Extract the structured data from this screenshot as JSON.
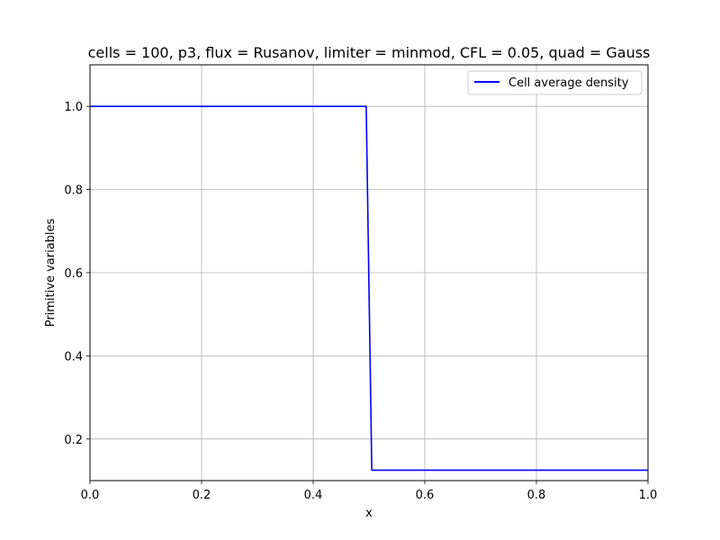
{
  "chart_data": {
    "type": "line",
    "title": "cells = 100, p3, flux = Rusanov, limiter = minmod, CFL = 0.05, quad = Gauss",
    "xlabel": "x",
    "ylabel": "Primitive variables",
    "xlim": [
      0.0,
      1.0
    ],
    "ylim": [
      0.1,
      1.1
    ],
    "xticks": [
      0.0,
      0.2,
      0.4,
      0.6,
      0.8,
      1.0
    ],
    "xtick_labels": [
      "0.0",
      "0.2",
      "0.4",
      "0.6",
      "0.8",
      "1.0"
    ],
    "yticks": [
      0.2,
      0.4,
      0.6,
      0.8,
      1.0
    ],
    "ytick_labels": [
      "0.2",
      "0.4",
      "0.6",
      "0.8",
      "1.0"
    ],
    "grid": true,
    "legend_position": "top-right",
    "series": [
      {
        "name": "Cell average density",
        "color": "#0000ff",
        "x": [
          0.0,
          0.495,
          0.505,
          1.0
        ],
        "y": [
          1.0,
          1.0,
          0.125,
          0.125
        ]
      }
    ]
  }
}
